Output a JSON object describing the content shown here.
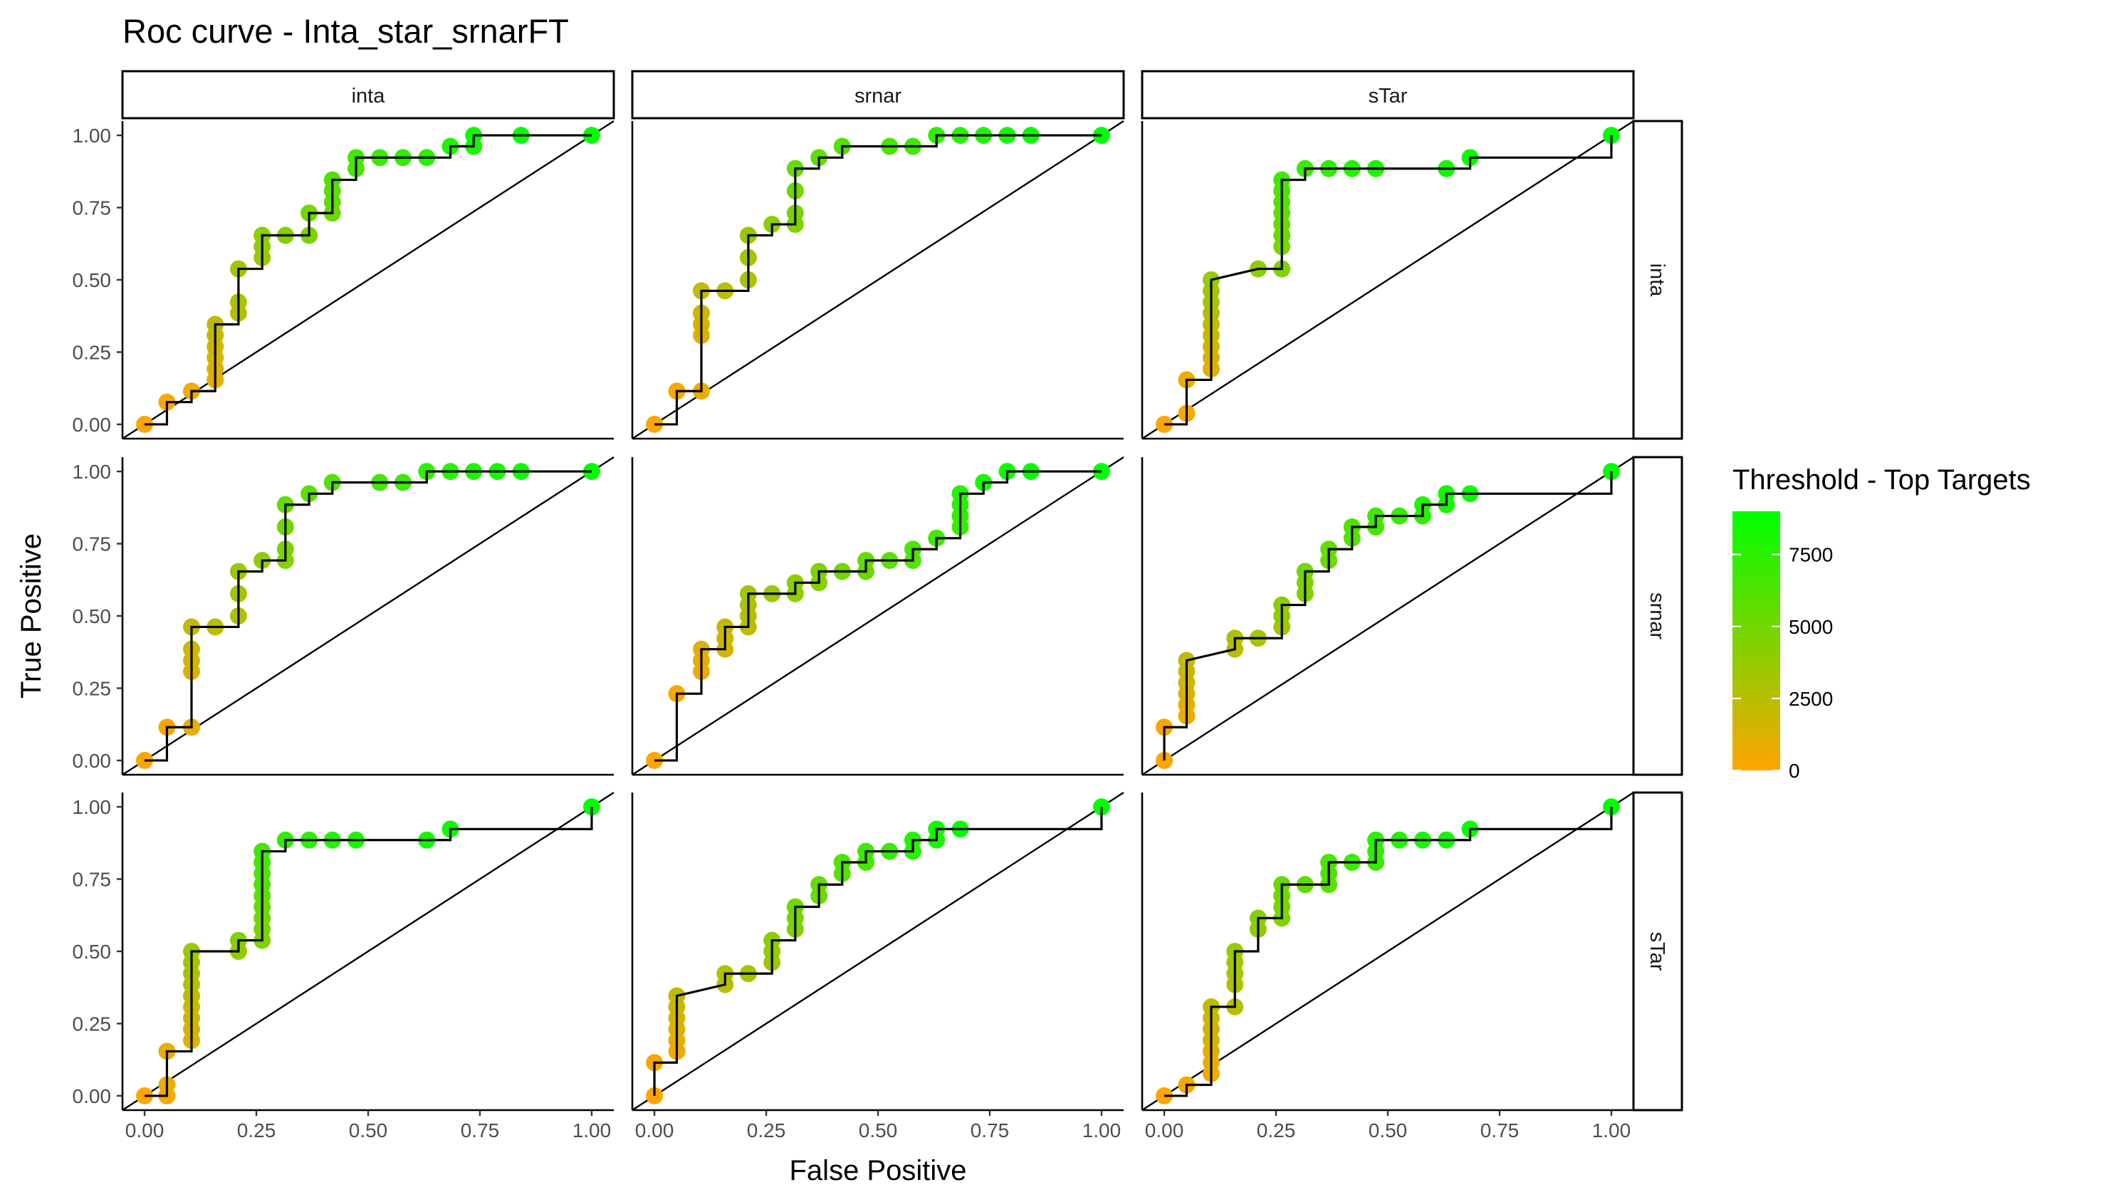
{
  "chart_data": {
    "type": "scatter",
    "title": "Roc curve - Inta_star_srnarFT",
    "xlabel": "False Positive",
    "ylabel": "True Positive",
    "xlim": [
      0,
      1
    ],
    "ylim": [
      0,
      1
    ],
    "x_ticks": [
      "0.00",
      "0.25",
      "0.50",
      "0.75",
      "1.00"
    ],
    "y_ticks": [
      "0.00",
      "0.25",
      "0.50",
      "0.75",
      "1.00"
    ],
    "grid": false,
    "col_facets": [
      "inta",
      "srnar",
      "sTar"
    ],
    "row_facets": [
      "inta",
      "srnar",
      "sTar"
    ],
    "legend": {
      "title": "Threshold - Top Targets",
      "position": "right",
      "ticks": [
        "0",
        "2500",
        "5000",
        "7500"
      ],
      "tick_values": [
        0,
        2500,
        5000,
        7500
      ],
      "range": [
        0,
        9000
      ],
      "color_low": "#FFA500",
      "color_high": "#00FF00"
    },
    "panels": [
      {
        "row": "inta",
        "col": "inta",
        "points": [
          [
            0,
            0
          ],
          [
            0.05,
            0.077
          ],
          [
            0.105,
            0.115
          ],
          [
            0.158,
            0.154
          ],
          [
            0.158,
            0.192
          ],
          [
            0.158,
            0.231
          ],
          [
            0.158,
            0.269
          ],
          [
            0.158,
            0.308
          ],
          [
            0.158,
            0.346
          ],
          [
            0.21,
            0.385
          ],
          [
            0.21,
            0.423
          ],
          [
            0.21,
            0.538
          ],
          [
            0.263,
            0.577
          ],
          [
            0.263,
            0.615
          ],
          [
            0.263,
            0.654
          ],
          [
            0.315,
            0.654
          ],
          [
            0.368,
            0.654
          ],
          [
            0.368,
            0.731
          ],
          [
            0.42,
            0.731
          ],
          [
            0.42,
            0.769
          ],
          [
            0.42,
            0.808
          ],
          [
            0.42,
            0.846
          ],
          [
            0.473,
            0.885
          ],
          [
            0.473,
            0.923
          ],
          [
            0.526,
            0.923
          ],
          [
            0.578,
            0.923
          ],
          [
            0.631,
            0.923
          ],
          [
            0.684,
            0.962
          ],
          [
            0.736,
            0.962
          ],
          [
            0.736,
            1
          ],
          [
            0.842,
            1
          ],
          [
            1,
            1
          ]
        ]
      },
      {
        "row": "inta",
        "col": "srnar",
        "points": [
          [
            0,
            0
          ],
          [
            0.05,
            0.115
          ],
          [
            0.105,
            0.115
          ],
          [
            0.105,
            0.308
          ],
          [
            0.105,
            0.346
          ],
          [
            0.105,
            0.385
          ],
          [
            0.105,
            0.462
          ],
          [
            0.158,
            0.462
          ],
          [
            0.21,
            0.5
          ],
          [
            0.21,
            0.577
          ],
          [
            0.21,
            0.654
          ],
          [
            0.263,
            0.692
          ],
          [
            0.315,
            0.692
          ],
          [
            0.315,
            0.731
          ],
          [
            0.315,
            0.808
          ],
          [
            0.315,
            0.885
          ],
          [
            0.368,
            0.923
          ],
          [
            0.42,
            0.962
          ],
          [
            0.526,
            0.962
          ],
          [
            0.578,
            0.962
          ],
          [
            0.631,
            1
          ],
          [
            0.684,
            1
          ],
          [
            0.736,
            1
          ],
          [
            0.789,
            1
          ],
          [
            0.842,
            1
          ],
          [
            1,
            1
          ]
        ]
      },
      {
        "row": "inta",
        "col": "sTar",
        "points": [
          [
            0,
            0
          ],
          [
            0.05,
            0.038
          ],
          [
            0.05,
            0.154
          ],
          [
            0.105,
            0.192
          ],
          [
            0.105,
            0.231
          ],
          [
            0.105,
            0.269
          ],
          [
            0.105,
            0.308
          ],
          [
            0.105,
            0.346
          ],
          [
            0.105,
            0.385
          ],
          [
            0.105,
            0.423
          ],
          [
            0.105,
            0.462
          ],
          [
            0.105,
            0.5
          ],
          [
            0.21,
            0.538
          ],
          [
            0.263,
            0.538
          ],
          [
            0.263,
            0.615
          ],
          [
            0.263,
            0.654
          ],
          [
            0.263,
            0.692
          ],
          [
            0.263,
            0.731
          ],
          [
            0.263,
            0.769
          ],
          [
            0.263,
            0.808
          ],
          [
            0.263,
            0.846
          ],
          [
            0.315,
            0.885
          ],
          [
            0.368,
            0.885
          ],
          [
            0.42,
            0.885
          ],
          [
            0.473,
            0.885
          ],
          [
            0.631,
            0.885
          ],
          [
            0.684,
            0.923
          ],
          [
            1,
            1
          ]
        ]
      },
      {
        "row": "srnar",
        "col": "inta",
        "points": [
          [
            0,
            0
          ],
          [
            0.05,
            0.115
          ],
          [
            0.105,
            0.115
          ],
          [
            0.105,
            0.308
          ],
          [
            0.105,
            0.346
          ],
          [
            0.105,
            0.385
          ],
          [
            0.105,
            0.462
          ],
          [
            0.158,
            0.462
          ],
          [
            0.21,
            0.5
          ],
          [
            0.21,
            0.577
          ],
          [
            0.21,
            0.654
          ],
          [
            0.263,
            0.692
          ],
          [
            0.315,
            0.692
          ],
          [
            0.315,
            0.731
          ],
          [
            0.315,
            0.808
          ],
          [
            0.315,
            0.885
          ],
          [
            0.368,
            0.923
          ],
          [
            0.42,
            0.962
          ],
          [
            0.526,
            0.962
          ],
          [
            0.578,
            0.962
          ],
          [
            0.631,
            1
          ],
          [
            0.684,
            1
          ],
          [
            0.736,
            1
          ],
          [
            0.789,
            1
          ],
          [
            0.842,
            1
          ],
          [
            1,
            1
          ]
        ]
      },
      {
        "row": "srnar",
        "col": "srnar",
        "points": [
          [
            0,
            0
          ],
          [
            0.05,
            0.231
          ],
          [
            0.105,
            0.308
          ],
          [
            0.105,
            0.346
          ],
          [
            0.105,
            0.385
          ],
          [
            0.158,
            0.385
          ],
          [
            0.158,
            0.423
          ],
          [
            0.158,
            0.462
          ],
          [
            0.21,
            0.462
          ],
          [
            0.21,
            0.5
          ],
          [
            0.21,
            0.538
          ],
          [
            0.21,
            0.577
          ],
          [
            0.263,
            0.577
          ],
          [
            0.315,
            0.577
          ],
          [
            0.315,
            0.615
          ],
          [
            0.368,
            0.615
          ],
          [
            0.368,
            0.654
          ],
          [
            0.42,
            0.654
          ],
          [
            0.473,
            0.654
          ],
          [
            0.473,
            0.692
          ],
          [
            0.526,
            0.692
          ],
          [
            0.578,
            0.692
          ],
          [
            0.578,
            0.731
          ],
          [
            0.631,
            0.769
          ],
          [
            0.684,
            0.808
          ],
          [
            0.684,
            0.846
          ],
          [
            0.684,
            0.885
          ],
          [
            0.684,
            0.923
          ],
          [
            0.736,
            0.962
          ],
          [
            0.789,
            1
          ],
          [
            0.842,
            1
          ],
          [
            1,
            1
          ]
        ]
      },
      {
        "row": "srnar",
        "col": "sTar",
        "points": [
          [
            0,
            0
          ],
          [
            0,
            0.115
          ],
          [
            0.05,
            0.154
          ],
          [
            0.05,
            0.192
          ],
          [
            0.05,
            0.231
          ],
          [
            0.05,
            0.269
          ],
          [
            0.05,
            0.308
          ],
          [
            0.05,
            0.346
          ],
          [
            0.158,
            0.385
          ],
          [
            0.158,
            0.423
          ],
          [
            0.21,
            0.423
          ],
          [
            0.263,
            0.462
          ],
          [
            0.263,
            0.5
          ],
          [
            0.263,
            0.538
          ],
          [
            0.315,
            0.577
          ],
          [
            0.315,
            0.615
          ],
          [
            0.315,
            0.654
          ],
          [
            0.368,
            0.692
          ],
          [
            0.368,
            0.731
          ],
          [
            0.42,
            0.769
          ],
          [
            0.42,
            0.808
          ],
          [
            0.473,
            0.808
          ],
          [
            0.473,
            0.846
          ],
          [
            0.526,
            0.846
          ],
          [
            0.578,
            0.846
          ],
          [
            0.578,
            0.885
          ],
          [
            0.631,
            0.885
          ],
          [
            0.631,
            0.923
          ],
          [
            0.684,
            0.923
          ],
          [
            1,
            1
          ]
        ]
      },
      {
        "row": "sTar",
        "col": "inta",
        "points": [
          [
            0,
            0
          ],
          [
            0.05,
            0
          ],
          [
            0.05,
            0.038
          ],
          [
            0.05,
            0.154
          ],
          [
            0.105,
            0.192
          ],
          [
            0.105,
            0.231
          ],
          [
            0.105,
            0.269
          ],
          [
            0.105,
            0.308
          ],
          [
            0.105,
            0.346
          ],
          [
            0.105,
            0.385
          ],
          [
            0.105,
            0.423
          ],
          [
            0.105,
            0.462
          ],
          [
            0.105,
            0.5
          ],
          [
            0.21,
            0.5
          ],
          [
            0.21,
            0.538
          ],
          [
            0.263,
            0.538
          ],
          [
            0.263,
            0.577
          ],
          [
            0.263,
            0.615
          ],
          [
            0.263,
            0.654
          ],
          [
            0.263,
            0.692
          ],
          [
            0.263,
            0.731
          ],
          [
            0.263,
            0.769
          ],
          [
            0.263,
            0.808
          ],
          [
            0.263,
            0.846
          ],
          [
            0.315,
            0.885
          ],
          [
            0.368,
            0.885
          ],
          [
            0.42,
            0.885
          ],
          [
            0.473,
            0.885
          ],
          [
            0.631,
            0.885
          ],
          [
            0.684,
            0.923
          ],
          [
            1,
            1
          ]
        ]
      },
      {
        "row": "sTar",
        "col": "srnar",
        "points": [
          [
            0,
            0
          ],
          [
            0,
            0.115
          ],
          [
            0.05,
            0.154
          ],
          [
            0.05,
            0.192
          ],
          [
            0.05,
            0.231
          ],
          [
            0.05,
            0.269
          ],
          [
            0.05,
            0.308
          ],
          [
            0.05,
            0.346
          ],
          [
            0.158,
            0.385
          ],
          [
            0.158,
            0.423
          ],
          [
            0.21,
            0.423
          ],
          [
            0.263,
            0.462
          ],
          [
            0.263,
            0.5
          ],
          [
            0.263,
            0.538
          ],
          [
            0.315,
            0.577
          ],
          [
            0.315,
            0.615
          ],
          [
            0.315,
            0.654
          ],
          [
            0.368,
            0.692
          ],
          [
            0.368,
            0.731
          ],
          [
            0.42,
            0.769
          ],
          [
            0.42,
            0.808
          ],
          [
            0.473,
            0.808
          ],
          [
            0.473,
            0.846
          ],
          [
            0.526,
            0.846
          ],
          [
            0.578,
            0.846
          ],
          [
            0.578,
            0.885
          ],
          [
            0.631,
            0.885
          ],
          [
            0.631,
            0.923
          ],
          [
            0.684,
            0.923
          ],
          [
            1,
            1
          ]
        ]
      },
      {
        "row": "sTar",
        "col": "sTar",
        "points": [
          [
            0,
            0
          ],
          [
            0.05,
            0.038
          ],
          [
            0.105,
            0.077
          ],
          [
            0.105,
            0.115
          ],
          [
            0.105,
            0.154
          ],
          [
            0.105,
            0.192
          ],
          [
            0.105,
            0.231
          ],
          [
            0.105,
            0.269
          ],
          [
            0.105,
            0.308
          ],
          [
            0.158,
            0.308
          ],
          [
            0.158,
            0.385
          ],
          [
            0.158,
            0.423
          ],
          [
            0.158,
            0.462
          ],
          [
            0.158,
            0.5
          ],
          [
            0.21,
            0.577
          ],
          [
            0.21,
            0.615
          ],
          [
            0.263,
            0.615
          ],
          [
            0.263,
            0.654
          ],
          [
            0.263,
            0.692
          ],
          [
            0.263,
            0.731
          ],
          [
            0.315,
            0.731
          ],
          [
            0.368,
            0.731
          ],
          [
            0.368,
            0.769
          ],
          [
            0.368,
            0.808
          ],
          [
            0.42,
            0.808
          ],
          [
            0.473,
            0.808
          ],
          [
            0.473,
            0.846
          ],
          [
            0.473,
            0.885
          ],
          [
            0.526,
            0.885
          ],
          [
            0.578,
            0.885
          ],
          [
            0.631,
            0.885
          ],
          [
            0.684,
            0.923
          ],
          [
            1,
            1
          ]
        ]
      }
    ]
  }
}
